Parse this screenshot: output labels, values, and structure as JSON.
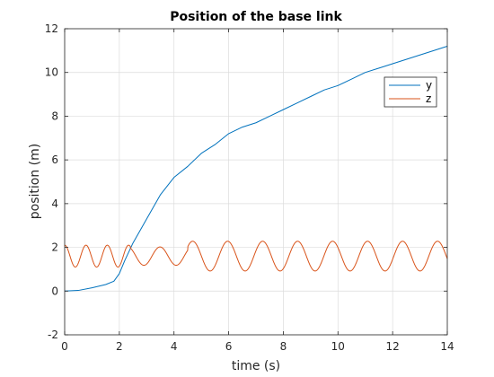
{
  "chart_data": {
    "type": "line",
    "title": "Position of the base link",
    "xlabel": "time (s)",
    "ylabel": "position (m)",
    "xlim": [
      0,
      14
    ],
    "ylim": [
      -2,
      12
    ],
    "xticks": [
      0,
      2,
      4,
      6,
      8,
      10,
      12,
      14
    ],
    "yticks": [
      -2,
      0,
      2,
      4,
      6,
      8,
      10,
      12
    ],
    "grid": true,
    "legend_position": "top-right",
    "series": [
      {
        "name": "y",
        "color": "#0072BD",
        "x": [
          0,
          0.5,
          1.0,
          1.5,
          1.8,
          2.0,
          2.2,
          2.5,
          3.0,
          3.5,
          4.0,
          4.5,
          5.0,
          5.5,
          6.0,
          6.5,
          7.0,
          7.5,
          8.0,
          8.5,
          9.0,
          9.5,
          10.0,
          10.5,
          11.0,
          11.5,
          12.0,
          12.5,
          13.0,
          13.5,
          14.0
        ],
        "y": [
          0,
          0.03,
          0.15,
          0.3,
          0.45,
          0.8,
          1.4,
          2.2,
          3.3,
          4.4,
          5.2,
          5.7,
          6.3,
          6.7,
          7.2,
          7.5,
          7.7,
          8.0,
          8.3,
          8.6,
          8.9,
          9.2,
          9.4,
          9.7,
          10.0,
          10.2,
          10.4,
          10.6,
          10.8,
          11.0,
          11.2
        ]
      },
      {
        "name": "z",
        "color": "#D95319",
        "model": {
          "type": "sinusoid",
          "offset": 1.6,
          "phase_at_zero_rad": 1.5708,
          "segments": [
            {
              "t_start": 0,
              "t_end": 2.4,
              "period": 0.78,
              "amplitude": 0.5
            },
            {
              "t_start": 2.4,
              "t_end": 4.5,
              "period": 1.18,
              "amplitude": 0.42
            },
            {
              "t_start": 4.5,
              "t_end": 14,
              "period": 1.28,
              "amplitude": 0.68
            }
          ]
        }
      }
    ]
  }
}
